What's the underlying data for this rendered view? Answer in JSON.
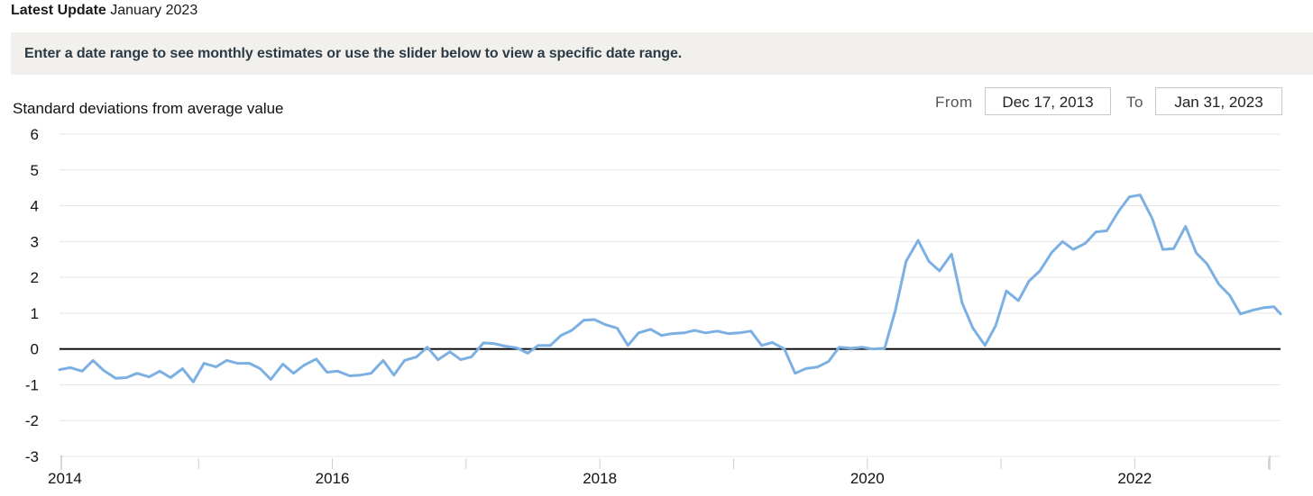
{
  "header": {
    "update_label": "Latest Update",
    "update_value": "January 2023"
  },
  "banner": {
    "text": "Enter a date range to see monthly estimates or use the slider below to view a specific date range."
  },
  "date_range": {
    "from_label": "From",
    "from_value": "Dec 17, 2013",
    "to_label": "To",
    "to_value": "Jan 31, 2023"
  },
  "colors": {
    "line": "#7cb0e3",
    "zero_line": "#000000",
    "grid": "#e6e6e6",
    "banner_bg": "#f1f0ec"
  },
  "chart_data": {
    "type": "line",
    "ylabel": "Standard deviations from average value",
    "xlabel": "",
    "ylim": [
      -3,
      6
    ],
    "yticks": [
      "6",
      "5",
      "4",
      "3",
      "2",
      "1",
      "0",
      "-1",
      "-2",
      "-3"
    ],
    "xticks": [
      "2014",
      "2016",
      "2018",
      "2020",
      "2022"
    ],
    "x_range": [
      2013.96,
      2023.09
    ],
    "grid": true,
    "zero_line": true,
    "series": [
      {
        "x": [
          2013.96,
          2014.04,
          2014.13,
          2014.21,
          2014.29,
          2014.38,
          2014.46,
          2014.54,
          2014.63,
          2014.71,
          2014.79,
          2014.88,
          2014.96,
          2015.04,
          2015.13,
          2015.21,
          2015.29,
          2015.38,
          2015.46,
          2015.54,
          2015.63,
          2015.71,
          2015.79,
          2015.88,
          2015.96,
          2016.04,
          2016.13,
          2016.21,
          2016.29,
          2016.38,
          2016.46,
          2016.54,
          2016.63,
          2016.71,
          2016.79,
          2016.88,
          2016.96,
          2017.04,
          2017.13,
          2017.21,
          2017.29,
          2017.38,
          2017.46,
          2017.54,
          2017.63,
          2017.71,
          2017.79,
          2017.88,
          2017.96,
          2018.04,
          2018.13,
          2018.21,
          2018.29,
          2018.38,
          2018.46,
          2018.54,
          2018.63,
          2018.71,
          2018.79,
          2018.88,
          2018.96,
          2019.04,
          2019.13,
          2019.21,
          2019.29,
          2019.38,
          2019.46,
          2019.54,
          2019.63,
          2019.71,
          2019.79,
          2019.88,
          2019.96,
          2020.04,
          2020.13,
          2020.21,
          2020.29,
          2020.38,
          2020.46,
          2020.54,
          2020.63,
          2020.71,
          2020.79,
          2020.88,
          2020.96,
          2021.04,
          2021.13,
          2021.21,
          2021.29,
          2021.38,
          2021.46,
          2021.54,
          2021.63,
          2021.71,
          2021.79,
          2021.88,
          2021.96,
          2022.04,
          2022.13,
          2022.21,
          2022.29,
          2022.38,
          2022.46,
          2022.54,
          2022.63,
          2022.71,
          2022.79,
          2022.88,
          2022.96,
          2023.04,
          2023.09
        ],
        "values": [
          -0.58,
          -0.52,
          -0.62,
          -0.32,
          -0.6,
          -0.82,
          -0.8,
          -0.68,
          -0.78,
          -0.62,
          -0.8,
          -0.55,
          -0.92,
          -0.4,
          -0.5,
          -0.32,
          -0.4,
          -0.4,
          -0.55,
          -0.85,
          -0.42,
          -0.68,
          -0.45,
          -0.28,
          -0.65,
          -0.62,
          -0.75,
          -0.73,
          -0.68,
          -0.32,
          -0.73,
          -0.32,
          -0.22,
          0.05,
          -0.3,
          -0.08,
          -0.3,
          -0.22,
          0.17,
          0.15,
          0.08,
          0.03,
          -0.12,
          0.1,
          0.1,
          0.38,
          0.52,
          0.8,
          0.82,
          0.68,
          0.58,
          0.1,
          0.45,
          0.55,
          0.38,
          0.43,
          0.45,
          0.52,
          0.45,
          0.5,
          0.43,
          0.45,
          0.5,
          0.1,
          0.18,
          0.0,
          -0.68,
          -0.55,
          -0.5,
          -0.35,
          0.05,
          0.02,
          0.05,
          0.0,
          0.02,
          1.08,
          2.45,
          3.03,
          2.45,
          2.18,
          2.65,
          1.28,
          0.58,
          0.1,
          0.65,
          1.62,
          1.35,
          1.9,
          2.18,
          2.7,
          3.0,
          2.78,
          2.95,
          3.27,
          3.3,
          3.85,
          4.25,
          4.3,
          3.65,
          2.78,
          2.8,
          3.42,
          2.68,
          2.38,
          1.8,
          1.5,
          0.98,
          1.08,
          1.15,
          1.18,
          0.98
        ]
      }
    ]
  }
}
